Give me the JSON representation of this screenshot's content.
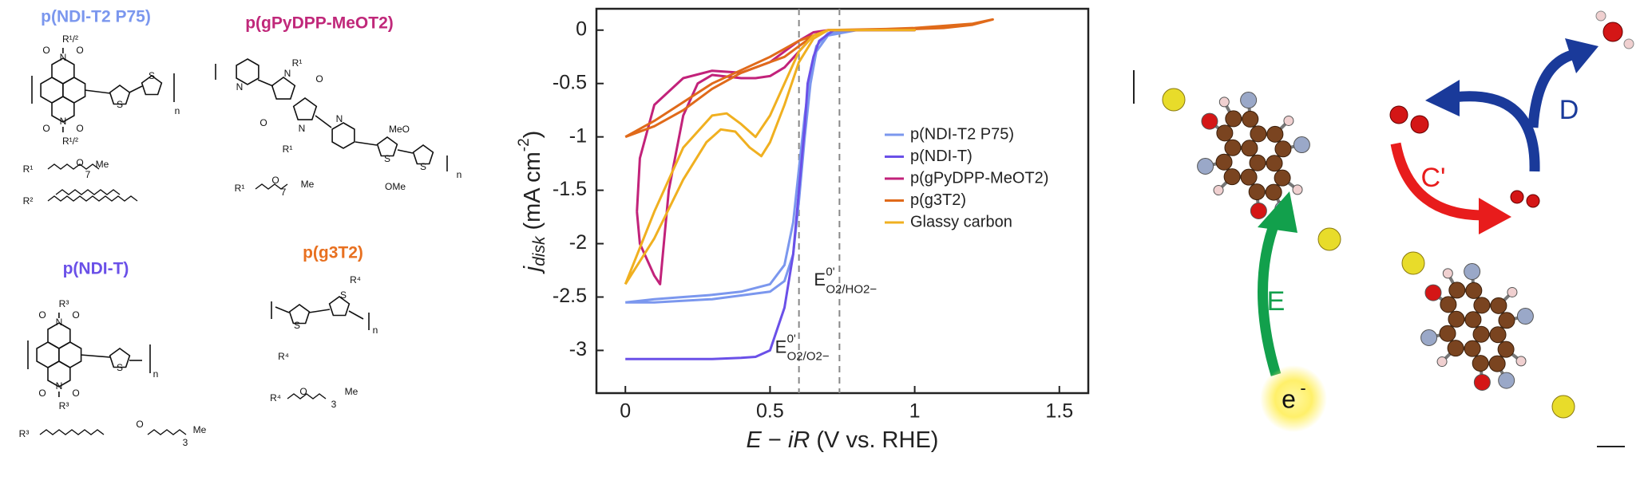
{
  "structures": [
    {
      "name": "p(NDI-T2 P75)",
      "color": "#7b97ee",
      "labels": [
        "N",
        "N",
        "O",
        "O",
        "O",
        "O",
        "R¹/²",
        "R¹/²",
        "S",
        "S",
        "n",
        "R¹",
        "O",
        "7",
        "Me",
        "R²"
      ]
    },
    {
      "name": "p(gPyDPP-MeOT2)",
      "color": "#c0287a",
      "labels": [
        "N",
        "N",
        "R¹",
        "O",
        "O",
        "N",
        "R¹",
        "N",
        "MeO",
        "OMe",
        "S",
        "S",
        "n",
        "R¹",
        "O",
        "7",
        "Me"
      ]
    },
    {
      "name": "p(NDI-T)",
      "color": "#6a50e8",
      "labels": [
        "N",
        "N",
        "O",
        "O",
        "O",
        "O",
        "R³",
        "R³",
        "S",
        "n",
        "R³",
        "O",
        "3",
        "Me"
      ]
    },
    {
      "name": "p(g3T2)",
      "color": "#e87020",
      "labels": [
        "S",
        "S",
        "R⁴",
        "R⁴",
        "n",
        "R⁴",
        "O",
        "3",
        "Me"
      ]
    }
  ],
  "chart_data": {
    "type": "line",
    "xlabel": {
      "parts": [
        "E",
        " − ",
        "iR",
        " (V vs. RHE)"
      ],
      "italic": [
        true,
        false,
        true,
        false
      ]
    },
    "ylabel": {
      "symbol": "j",
      "sub": "disk",
      "unit": "(mA cm",
      "sup": "-2",
      "close": ")"
    },
    "xlim": [
      -0.1,
      1.6
    ],
    "ylim": [
      -3.4,
      0.2
    ],
    "xticks": [
      0,
      0.5,
      1,
      1.5
    ],
    "yticks": [
      0,
      -0.5,
      -1,
      -1.5,
      -2,
      -2.5,
      -3
    ],
    "vlines": [
      0.6,
      0.74
    ],
    "annotations": [
      {
        "base": "E",
        "sup": "0'",
        "sub": "O2/O2−"
      },
      {
        "base": "E",
        "sup": "0'",
        "sub": "O2/HO2−"
      }
    ],
    "legend": "right",
    "series": [
      {
        "name": "p(NDI-T2 P75)",
        "color": "#7b97ee",
        "x": [
          0,
          0.1,
          0.2,
          0.3,
          0.4,
          0.5,
          0.55,
          0.58,
          0.6,
          0.62,
          0.64,
          0.66,
          0.7,
          0.8,
          1.0,
          0.8,
          0.7,
          0.66,
          0.64,
          0.62,
          0.6,
          0.58,
          0.55,
          0.5,
          0.3,
          0.1,
          0
        ],
        "values": [
          -2.55,
          -2.52,
          -2.5,
          -2.48,
          -2.45,
          -2.38,
          -2.2,
          -1.8,
          -1.3,
          -0.8,
          -0.4,
          -0.15,
          -0.03,
          0,
          0,
          0,
          -0.05,
          -0.2,
          -0.5,
          -1.0,
          -1.6,
          -2.1,
          -2.35,
          -2.45,
          -2.52,
          -2.55,
          -2.55
        ]
      },
      {
        "name": "p(NDI-T)",
        "color": "#6a50e8",
        "x": [
          0,
          0.1,
          0.2,
          0.3,
          0.4,
          0.45,
          0.5,
          0.55,
          0.58,
          0.6,
          0.62,
          0.63,
          0.65,
          0.67,
          0.72,
          0.8,
          1.0
        ],
        "values": [
          -3.08,
          -3.08,
          -3.08,
          -3.08,
          -3.07,
          -3.06,
          -3.0,
          -2.6,
          -2.1,
          -1.5,
          -0.9,
          -0.5,
          -0.25,
          -0.1,
          0,
          0,
          0
        ]
      },
      {
        "name": "p(gPyDPP-MeOT2)",
        "color": "#c2227a",
        "x": [
          0.04,
          0.05,
          0.1,
          0.2,
          0.3,
          0.4,
          0.45,
          0.5,
          0.55,
          0.6,
          0.65,
          0.7,
          1.0,
          0.7,
          0.65,
          0.6,
          0.55,
          0.5,
          0.45,
          0.4,
          0.3,
          0.25,
          0.2,
          0.15,
          0.12,
          0.1,
          0.05,
          0.04
        ],
        "values": [
          -1.7,
          -1.2,
          -0.7,
          -0.45,
          -0.38,
          -0.4,
          -0.35,
          -0.3,
          -0.2,
          -0.1,
          -0.02,
          0,
          0,
          0,
          -0.05,
          -0.2,
          -0.35,
          -0.43,
          -0.45,
          -0.45,
          -0.42,
          -0.5,
          -0.8,
          -1.5,
          -2.38,
          -2.3,
          -2.0,
          -1.7
        ]
      },
      {
        "name": "p(g3T2)",
        "color": "#e06a1a",
        "x": [
          0,
          0.1,
          0.2,
          0.3,
          0.4,
          0.5,
          0.55,
          0.6,
          0.65,
          0.7,
          0.8,
          1.0,
          1.1,
          1.2,
          1.27,
          1.2,
          1.0,
          0.9,
          0.7,
          0.6,
          0.5,
          0.3,
          0.1,
          0
        ],
        "values": [
          -1.0,
          -0.9,
          -0.75,
          -0.55,
          -0.4,
          -0.3,
          -0.25,
          -0.15,
          -0.05,
          0,
          0,
          0.01,
          0.02,
          0.05,
          0.1,
          0.06,
          0.02,
          0.01,
          0,
          -0.1,
          -0.25,
          -0.5,
          -0.85,
          -1.0
        ]
      },
      {
        "name": "Glassy carbon",
        "color": "#f0b020",
        "x": [
          0,
          0.1,
          0.2,
          0.3,
          0.35,
          0.4,
          0.45,
          0.5,
          0.55,
          0.6,
          0.65,
          0.7,
          1.0,
          0.7,
          0.65,
          0.6,
          0.55,
          0.5,
          0.47,
          0.43,
          0.38,
          0.33,
          0.28,
          0.2,
          0.1,
          0
        ],
        "values": [
          -2.38,
          -1.7,
          -1.1,
          -0.8,
          -0.78,
          -0.88,
          -1.0,
          -0.8,
          -0.5,
          -0.2,
          -0.05,
          0,
          0,
          0,
          -0.08,
          -0.3,
          -0.7,
          -1.05,
          -1.18,
          -1.1,
          -0.95,
          -0.93,
          -1.05,
          -1.4,
          -1.95,
          -2.38
        ]
      }
    ]
  },
  "diagram": {
    "steps": [
      "C'",
      "D",
      "E"
    ],
    "electron": {
      "base": "e",
      "sup": "-"
    }
  }
}
